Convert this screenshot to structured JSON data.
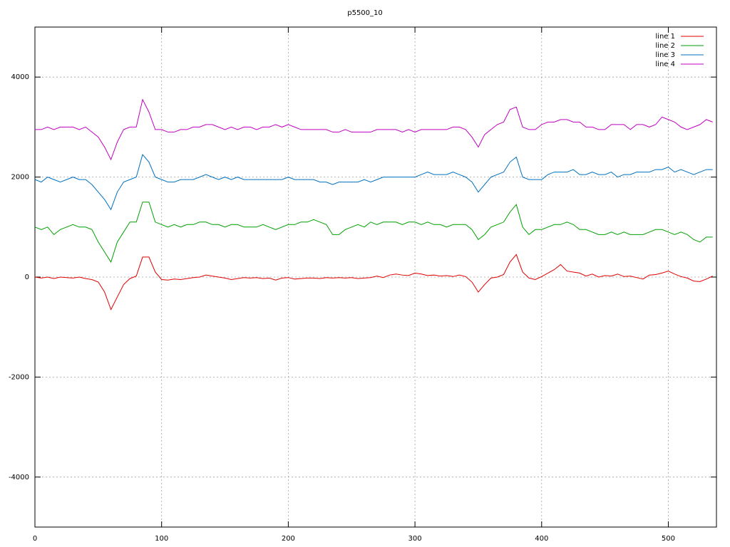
{
  "chart_data": {
    "type": "line",
    "title": "p5500_10",
    "xlim": [
      0,
      538
    ],
    "ylim": [
      -5000,
      5000
    ],
    "xticks": [
      0,
      100,
      200,
      300,
      400,
      500
    ],
    "yticks": [
      -4000,
      -2000,
      0,
      2000,
      4000
    ],
    "grid": true,
    "legend": "top-right",
    "x": [
      0,
      5,
      10,
      15,
      20,
      25,
      30,
      35,
      40,
      45,
      50,
      55,
      60,
      65,
      70,
      75,
      80,
      85,
      90,
      95,
      100,
      105,
      110,
      115,
      120,
      125,
      130,
      135,
      140,
      145,
      150,
      155,
      160,
      165,
      170,
      175,
      180,
      185,
      190,
      195,
      200,
      205,
      210,
      215,
      220,
      225,
      230,
      235,
      240,
      245,
      250,
      255,
      260,
      265,
      270,
      275,
      280,
      285,
      290,
      295,
      300,
      305,
      310,
      315,
      320,
      325,
      330,
      335,
      340,
      345,
      350,
      355,
      360,
      365,
      370,
      375,
      380,
      385,
      390,
      395,
      400,
      405,
      410,
      415,
      420,
      425,
      430,
      435,
      440,
      445,
      450,
      455,
      460,
      465,
      470,
      475,
      480,
      485,
      490,
      495,
      500,
      505,
      510,
      515,
      520,
      525,
      530,
      535
    ],
    "series": [
      {
        "name": "line 1",
        "color": "#e00000",
        "values": [
          0,
          -20,
          0,
          -30,
          0,
          -10,
          -20,
          0,
          -30,
          -50,
          -100,
          -300,
          -650,
          -400,
          -150,
          -30,
          20,
          400,
          400,
          100,
          -50,
          -60,
          -40,
          -50,
          -30,
          -10,
          0,
          40,
          20,
          0,
          -20,
          -50,
          -30,
          -10,
          -20,
          -10,
          -30,
          -20,
          -60,
          -20,
          -10,
          -40,
          -30,
          -20,
          -20,
          -30,
          -10,
          -20,
          -10,
          -20,
          -10,
          -30,
          -20,
          -10,
          20,
          -10,
          40,
          60,
          40,
          30,
          80,
          60,
          30,
          40,
          20,
          30,
          10,
          40,
          10,
          -100,
          -300,
          -150,
          -20,
          0,
          50,
          300,
          450,
          100,
          -20,
          -50,
          10,
          80,
          150,
          250,
          120,
          100,
          80,
          20,
          60,
          0,
          30,
          20,
          60,
          10,
          20,
          -10,
          -40,
          40,
          50,
          80,
          120,
          60,
          10,
          -20,
          -80,
          -90,
          -40,
          20
        ]
      },
      {
        "name": "line 2",
        "color": "#00a000",
        "values": [
          1000,
          950,
          1000,
          850,
          950,
          1000,
          1050,
          1000,
          1000,
          950,
          700,
          500,
          300,
          700,
          900,
          1100,
          1100,
          1500,
          1500,
          1100,
          1050,
          1000,
          1050,
          1000,
          1050,
          1050,
          1100,
          1100,
          1050,
          1050,
          1000,
          1050,
          1050,
          1000,
          1000,
          1000,
          1050,
          1000,
          950,
          1000,
          1050,
          1050,
          1100,
          1100,
          1150,
          1100,
          1050,
          850,
          850,
          950,
          1000,
          1050,
          1000,
          1100,
          1050,
          1100,
          1100,
          1100,
          1050,
          1100,
          1100,
          1050,
          1100,
          1050,
          1050,
          1000,
          1050,
          1050,
          1050,
          950,
          750,
          850,
          1000,
          1050,
          1100,
          1300,
          1450,
          1000,
          850,
          950,
          950,
          1000,
          1050,
          1050,
          1100,
          1050,
          950,
          950,
          900,
          850,
          850,
          900,
          850,
          900,
          850,
          850,
          850,
          900,
          950,
          950,
          900,
          850,
          900,
          850,
          750,
          700,
          800,
          800
        ]
      },
      {
        "name": "line 3",
        "color": "#0070c0",
        "values": [
          1950,
          1900,
          2000,
          1950,
          1900,
          1950,
          2000,
          1950,
          1950,
          1850,
          1700,
          1550,
          1350,
          1700,
          1900,
          1950,
          2000,
          2450,
          2300,
          2000,
          1950,
          1900,
          1900,
          1950,
          1950,
          1950,
          2000,
          2050,
          2000,
          1950,
          2000,
          1950,
          2000,
          1950,
          1950,
          1950,
          1950,
          1950,
          1950,
          1950,
          2000,
          1950,
          1950,
          1950,
          1950,
          1900,
          1900,
          1850,
          1900,
          1900,
          1900,
          1900,
          1950,
          1900,
          1950,
          2000,
          2000,
          2000,
          2000,
          2000,
          2000,
          2050,
          2100,
          2050,
          2050,
          2050,
          2100,
          2050,
          2000,
          1900,
          1700,
          1850,
          2000,
          2050,
          2100,
          2300,
          2400,
          2000,
          1950,
          1950,
          1950,
          2050,
          2100,
          2100,
          2100,
          2150,
          2050,
          2050,
          2100,
          2050,
          2050,
          2100,
          2000,
          2050,
          2050,
          2100,
          2100,
          2100,
          2150,
          2150,
          2200,
          2100,
          2150,
          2100,
          2050,
          2100,
          2150,
          2150
        ]
      },
      {
        "name": "line 4",
        "color": "#c000c0",
        "values": [
          2950,
          2950,
          3000,
          2950,
          3000,
          3000,
          3000,
          2950,
          3000,
          2900,
          2800,
          2600,
          2350,
          2700,
          2950,
          3000,
          3000,
          3550,
          3300,
          2950,
          2950,
          2900,
          2900,
          2950,
          2950,
          3000,
          3000,
          3050,
          3050,
          3000,
          2950,
          3000,
          2950,
          3000,
          3000,
          2950,
          3000,
          3000,
          3050,
          3000,
          3050,
          3000,
          2950,
          2950,
          2950,
          2950,
          2950,
          2900,
          2900,
          2950,
          2900,
          2900,
          2900,
          2900,
          2950,
          2950,
          2950,
          2950,
          2900,
          2950,
          2900,
          2950,
          2950,
          2950,
          2950,
          2950,
          3000,
          3000,
          2950,
          2800,
          2600,
          2850,
          2950,
          3050,
          3100,
          3350,
          3400,
          3000,
          2950,
          2950,
          3050,
          3100,
          3100,
          3150,
          3150,
          3100,
          3100,
          3000,
          3000,
          2950,
          2950,
          3050,
          3050,
          3050,
          2950,
          3050,
          3050,
          3000,
          3050,
          3200,
          3150,
          3100,
          3000,
          2950,
          3000,
          3050,
          3150,
          3100
        ]
      }
    ]
  }
}
